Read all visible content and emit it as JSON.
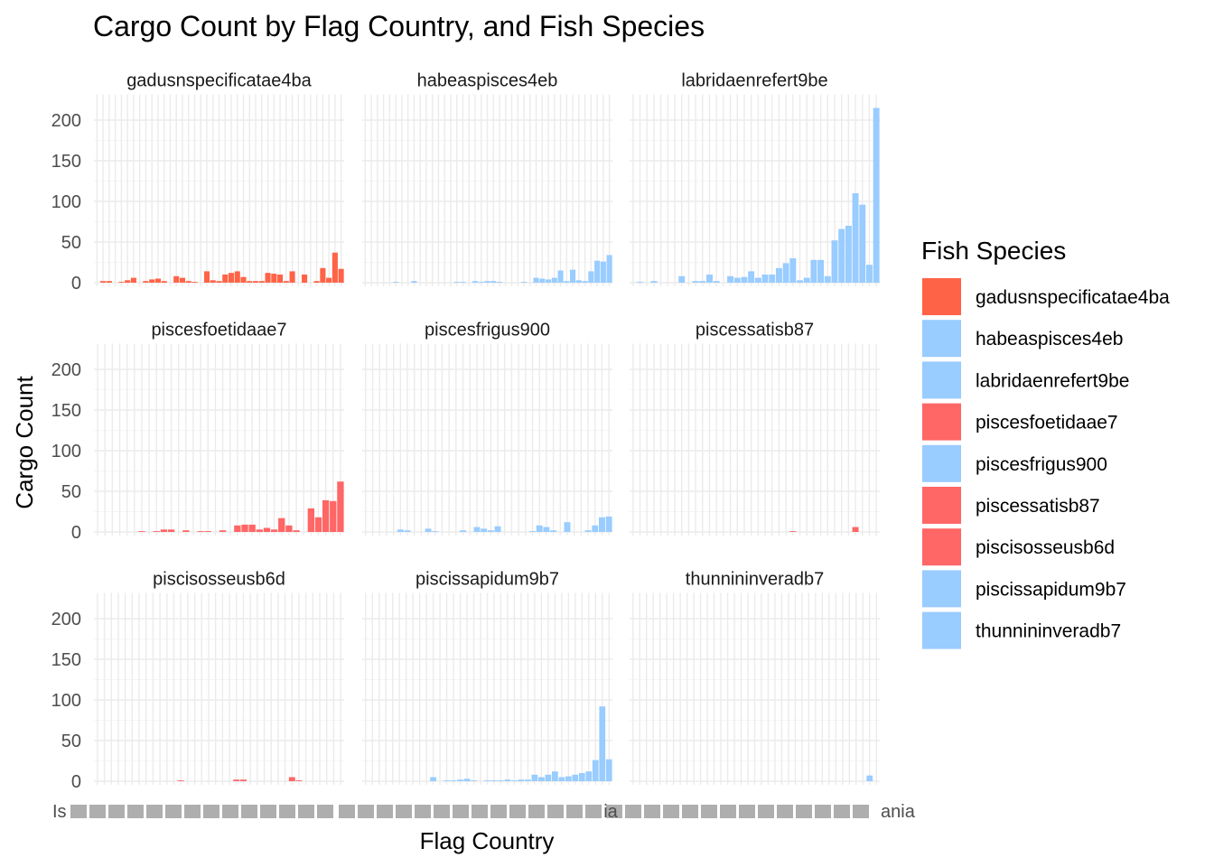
{
  "chart_data": {
    "type": "bar",
    "title": "Cargo Count by Flag Country, and Fish Species",
    "xlabel": "Flag Country",
    "ylabel": "Cargo Count",
    "ylim": [
      0,
      225
    ],
    "yticks": [
      0,
      50,
      100,
      150,
      200
    ],
    "legend_title": "Fish Species",
    "legend_position": "right",
    "x_tick_labels_overlapping": [
      "Is",
      "ia",
      "ania"
    ],
    "panels": [
      {
        "name": "gadusnspecificatae4ba",
        "color": "#FF6347",
        "values": [
          0,
          2,
          2,
          0,
          1,
          3,
          6,
          0,
          2,
          4,
          5,
          2,
          0,
          8,
          6,
          2,
          1,
          0,
          14,
          3,
          2,
          10,
          12,
          14,
          7,
          2,
          2,
          2,
          12,
          11,
          10,
          2,
          14,
          0,
          10,
          0,
          2,
          18,
          6,
          37,
          17
        ]
      },
      {
        "name": "habeaspisces4eb",
        "color": "#99CCFF",
        "values": [
          0,
          0,
          0,
          0,
          0,
          1,
          0,
          0,
          2,
          0,
          0,
          0,
          0,
          0,
          0,
          1,
          1,
          0,
          2,
          1,
          2,
          2,
          1,
          0,
          0,
          0,
          1,
          0,
          6,
          5,
          4,
          6,
          15,
          2,
          16,
          3,
          2,
          14,
          27,
          26,
          34
        ]
      },
      {
        "name": "labridaenrefert9be",
        "color": "#99CCFF",
        "values": [
          0,
          1,
          0,
          2,
          0,
          0,
          0,
          8,
          0,
          2,
          2,
          10,
          2,
          0,
          8,
          6,
          7,
          14,
          6,
          10,
          10,
          18,
          24,
          30,
          3,
          6,
          28,
          28,
          8,
          52,
          66,
          70,
          110,
          96,
          22,
          215
        ]
      },
      {
        "name": "piscesfoetidaae7",
        "color": "#FF6666",
        "values": [
          0,
          0,
          0,
          0,
          0,
          0,
          1,
          0,
          1,
          3,
          3,
          0,
          2,
          0,
          1,
          1,
          0,
          2,
          0,
          8,
          9,
          9,
          3,
          5,
          3,
          17,
          8,
          2,
          0,
          29,
          18,
          39,
          38,
          62
        ]
      },
      {
        "name": "piscesfrigus900",
        "color": "#99CCFF",
        "values": [
          0,
          0,
          0,
          0,
          0,
          3,
          2,
          0,
          0,
          4,
          1,
          0,
          0,
          0,
          2,
          0,
          6,
          4,
          2,
          7,
          0,
          0,
          0,
          0,
          1,
          8,
          6,
          2,
          0,
          12,
          0,
          0,
          2,
          8,
          18,
          19
        ]
      },
      {
        "name": "piscessatisb87",
        "color": "#FF6666",
        "values": [
          0,
          0,
          0,
          0,
          0,
          0,
          0,
          0,
          0,
          0,
          0,
          0,
          0,
          0,
          0,
          0,
          0,
          0,
          0,
          0,
          0,
          0,
          0,
          1,
          0,
          0,
          0,
          0,
          0,
          0,
          0,
          0,
          6,
          0,
          0,
          0
        ]
      },
      {
        "name": "piscisosseusb6d",
        "color": "#FF6666",
        "values": [
          0,
          0,
          0,
          0,
          0,
          0,
          0,
          0,
          0,
          0,
          0,
          0,
          1,
          0,
          0,
          0,
          0,
          0,
          0,
          0,
          2,
          2,
          0,
          0,
          0,
          0,
          0,
          0,
          5,
          1,
          0,
          0,
          0,
          0,
          0,
          0
        ]
      },
      {
        "name": "piscissapidum9b7",
        "color": "#99CCFF",
        "values": [
          0,
          0,
          0,
          0,
          0,
          0,
          0,
          0,
          0,
          0,
          5,
          0,
          1,
          1,
          2,
          3,
          1,
          0,
          1,
          1,
          1,
          2,
          1,
          2,
          2,
          8,
          5,
          8,
          12,
          5,
          6,
          8,
          10,
          12,
          26,
          92,
          27
        ]
      },
      {
        "name": "thunnininveradb7",
        "color": "#99CCFF",
        "values": [
          0,
          0,
          0,
          0,
          0,
          0,
          0,
          0,
          0,
          0,
          0,
          0,
          0,
          0,
          0,
          0,
          0,
          0,
          0,
          0,
          0,
          0,
          0,
          0,
          0,
          0,
          0,
          0,
          0,
          0,
          0,
          0,
          0,
          0,
          0,
          7,
          0
        ]
      }
    ]
  }
}
